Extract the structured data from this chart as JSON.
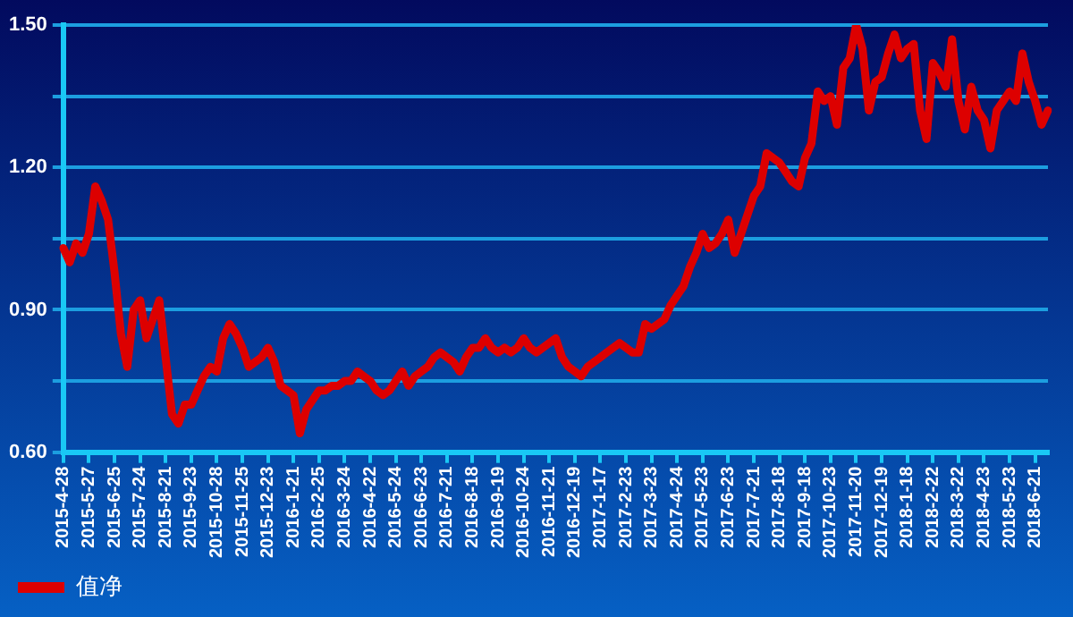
{
  "chart_data": {
    "type": "line",
    "categories": [
      "2015-4-28",
      null,
      null,
      null,
      "2015-5-27",
      null,
      null,
      null,
      "2015-6-25",
      null,
      null,
      null,
      "2015-7-24",
      null,
      null,
      null,
      "2015-8-21",
      null,
      null,
      null,
      "2015-9-23",
      null,
      null,
      null,
      "2015-10-28",
      null,
      null,
      null,
      "2015-11-25",
      null,
      null,
      null,
      "2015-12-23",
      null,
      null,
      null,
      "2016-1-21",
      null,
      null,
      null,
      "2016-2-25",
      null,
      null,
      null,
      "2016-3-24",
      null,
      null,
      null,
      "2016-4-22",
      null,
      null,
      null,
      "2016-5-24",
      null,
      null,
      null,
      "2016-6-23",
      null,
      null,
      null,
      "2016-7-21",
      null,
      null,
      null,
      "2016-8-18",
      null,
      null,
      null,
      "2016-9-19",
      null,
      null,
      null,
      "2016-10-24",
      null,
      null,
      null,
      "2016-11-21",
      null,
      null,
      null,
      "2016-12-19",
      null,
      null,
      null,
      "2017-1-17",
      null,
      null,
      null,
      "2017-2-23",
      null,
      null,
      null,
      "2017-3-23",
      null,
      null,
      null,
      "2017-4-24",
      null,
      null,
      null,
      "2017-5-23",
      null,
      null,
      null,
      "2017-6-23",
      null,
      null,
      null,
      "2017-7-21",
      null,
      null,
      null,
      "2017-8-18",
      null,
      null,
      null,
      "2017-9-18",
      null,
      null,
      null,
      "2017-10-23",
      null,
      null,
      null,
      "2017-11-20",
      null,
      null,
      null,
      "2017-12-19",
      null,
      null,
      null,
      "2018-1-18",
      null,
      null,
      null,
      "2018-2-22",
      null,
      null,
      null,
      "2018-3-22",
      null,
      null,
      null,
      "2018-4-23",
      null,
      null,
      null,
      "2018-5-23",
      null,
      null,
      null,
      "2018-6-21",
      null,
      null
    ],
    "series": [
      {
        "name": "值净",
        "color": "#dd0000",
        "values": [
          1.03,
          1.0,
          1.04,
          1.02,
          1.06,
          1.16,
          1.13,
          1.09,
          0.98,
          0.85,
          0.78,
          0.9,
          0.92,
          0.84,
          0.88,
          0.92,
          0.8,
          0.68,
          0.66,
          0.7,
          0.7,
          0.73,
          0.76,
          0.78,
          0.77,
          0.84,
          0.87,
          0.85,
          0.82,
          0.78,
          0.79,
          0.8,
          0.82,
          0.79,
          0.74,
          0.73,
          0.72,
          0.64,
          0.69,
          0.71,
          0.73,
          0.73,
          0.74,
          0.74,
          0.75,
          0.75,
          0.77,
          0.76,
          0.75,
          0.73,
          0.72,
          0.73,
          0.75,
          0.77,
          0.74,
          0.76,
          0.77,
          0.78,
          0.8,
          0.81,
          0.8,
          0.79,
          0.77,
          0.8,
          0.82,
          0.82,
          0.84,
          0.82,
          0.81,
          0.82,
          0.81,
          0.82,
          0.84,
          0.82,
          0.81,
          0.82,
          0.83,
          0.84,
          0.8,
          0.78,
          0.77,
          0.76,
          0.78,
          0.79,
          0.8,
          0.81,
          0.82,
          0.83,
          0.82,
          0.81,
          0.81,
          0.87,
          0.86,
          0.87,
          0.88,
          0.91,
          0.93,
          0.95,
          0.99,
          1.02,
          1.06,
          1.03,
          1.04,
          1.06,
          1.09,
          1.02,
          1.06,
          1.1,
          1.14,
          1.16,
          1.23,
          1.22,
          1.21,
          1.19,
          1.17,
          1.16,
          1.22,
          1.25,
          1.36,
          1.34,
          1.35,
          1.29,
          1.41,
          1.43,
          1.5,
          1.45,
          1.32,
          1.38,
          1.39,
          1.44,
          1.48,
          1.43,
          1.45,
          1.46,
          1.32,
          1.26,
          1.42,
          1.4,
          1.37,
          1.47,
          1.34,
          1.28,
          1.37,
          1.32,
          1.3,
          1.24,
          1.32,
          1.34,
          1.36,
          1.34,
          1.44,
          1.38,
          1.34,
          1.29,
          1.32
        ]
      }
    ],
    "ylim": [
      0.6,
      1.5
    ],
    "yticks": [
      {
        "value": 0.6,
        "label": "0.60"
      },
      {
        "value": 0.75,
        "label": null
      },
      {
        "value": 0.9,
        "label": "0.90"
      },
      {
        "value": 1.05,
        "label": null
      },
      {
        "value": 1.2,
        "label": "1.20"
      },
      {
        "value": 1.35,
        "label": null
      },
      {
        "value": 1.5,
        "label": "1.50"
      }
    ],
    "grid": "y",
    "legend": "bottom left",
    "marker": "none",
    "line_style": "solid"
  }
}
